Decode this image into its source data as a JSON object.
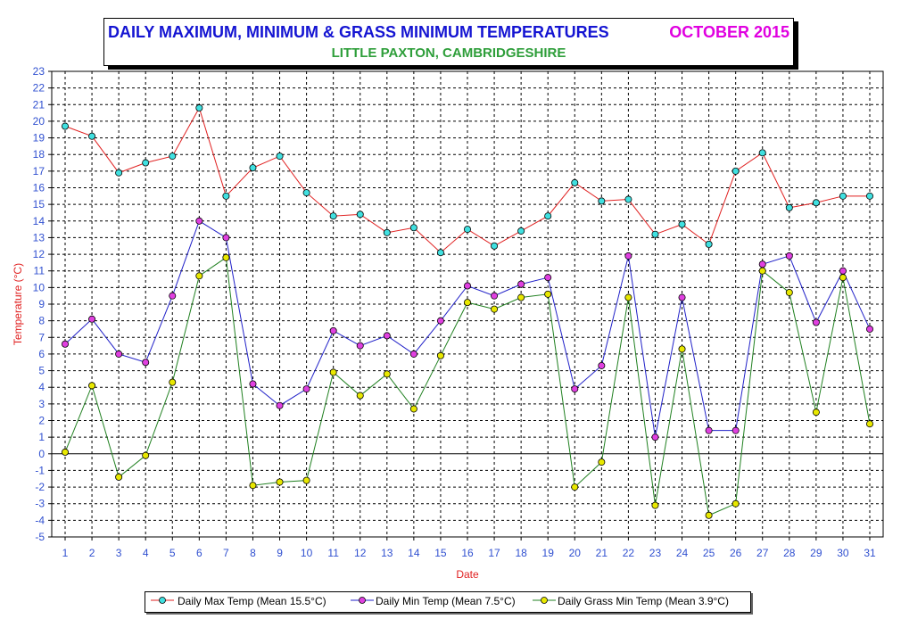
{
  "title": {
    "main": "DAILY MAXIMUM, MINIMUM & GRASS MINIMUM TEMPERATURES",
    "period": "OCTOBER 2015",
    "subtitle": "LITTLE PAXTON, CAMBRIDGESHIRE"
  },
  "colors": {
    "max_line": "#e02020",
    "max_marker": "#40e0e0",
    "min_line": "#2020c8",
    "min_marker": "#e040e0",
    "grass_line": "#208020",
    "grass_marker": "#e8e800",
    "axis_text": "#3050d0",
    "ylabel": "#e02020",
    "xlabel": "#e02020"
  },
  "chart_data": {
    "type": "line",
    "xlabel": "Date",
    "ylabel": "Temperature (°C)",
    "ylim": [
      -5,
      23
    ],
    "yticks": [
      -5,
      -4,
      -3,
      -2,
      -1,
      0,
      1,
      2,
      3,
      4,
      5,
      6,
      7,
      8,
      9,
      10,
      11,
      12,
      13,
      14,
      15,
      16,
      17,
      18,
      19,
      20,
      21,
      22,
      23
    ],
    "x": [
      1,
      2,
      3,
      4,
      5,
      6,
      7,
      8,
      9,
      10,
      11,
      12,
      13,
      14,
      15,
      16,
      17,
      18,
      19,
      20,
      21,
      22,
      23,
      24,
      25,
      26,
      27,
      28,
      29,
      30,
      31
    ],
    "grid": true,
    "legend_position": "bottom",
    "series": [
      {
        "name": "Daily Max Temp (Mean 15.5°C)",
        "values": [
          19.7,
          19.1,
          16.9,
          17.5,
          17.9,
          20.8,
          15.5,
          17.2,
          17.9,
          15.7,
          14.3,
          14.4,
          13.3,
          13.6,
          12.1,
          13.5,
          12.5,
          13.4,
          14.3,
          16.3,
          15.2,
          15.3,
          13.2,
          13.8,
          12.6,
          17.0,
          18.1,
          14.8,
          15.1,
          15.5,
          15.5
        ]
      },
      {
        "name": "Daily Min Temp (Mean 7.5°C)",
        "values": [
          6.6,
          8.1,
          6.0,
          5.5,
          9.5,
          14.0,
          13.0,
          4.2,
          2.9,
          3.9,
          7.4,
          6.5,
          7.1,
          6.0,
          8.0,
          10.1,
          9.5,
          10.2,
          10.6,
          3.9,
          5.3,
          11.9,
          1.0,
          9.4,
          1.4,
          1.4,
          11.4,
          11.9,
          7.9,
          11.0,
          7.5
        ]
      },
      {
        "name": "Daily Grass Min Temp (Mean 3.9°C)",
        "values": [
          0.1,
          4.1,
          -1.4,
          -0.1,
          4.3,
          10.7,
          11.8,
          -1.9,
          -1.7,
          -1.6,
          4.9,
          3.5,
          4.8,
          2.7,
          5.9,
          9.1,
          8.7,
          9.4,
          9.6,
          -2.0,
          -0.5,
          9.4,
          -3.1,
          6.3,
          -3.7,
          -3.0,
          11.0,
          9.7,
          2.5,
          10.6,
          1.8
        ]
      }
    ]
  }
}
